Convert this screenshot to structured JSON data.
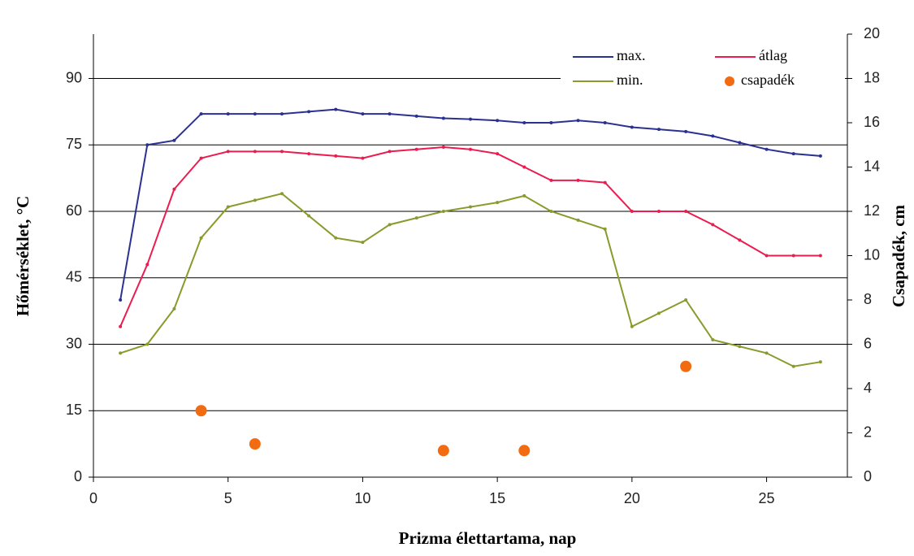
{
  "chart_data": {
    "type": "line",
    "x_label": "Prizma élettartama, nap",
    "y_label": "Hőmérséklet, °C",
    "y2_label": "Csapadék, cm",
    "x": [
      1,
      2,
      3,
      4,
      5,
      6,
      7,
      8,
      9,
      10,
      11,
      12,
      13,
      14,
      15,
      16,
      17,
      18,
      19,
      20,
      21,
      22,
      23,
      24,
      25,
      26,
      27
    ],
    "xlim": [
      0,
      28
    ],
    "xticks": [
      0,
      5,
      10,
      15,
      20,
      25
    ],
    "ylim": [
      0,
      100
    ],
    "yticks": [
      0,
      15,
      30,
      45,
      60,
      75,
      90
    ],
    "y2lim": [
      0,
      20
    ],
    "y2ticks": [
      0,
      2,
      4,
      6,
      8,
      10,
      12,
      14,
      16,
      18,
      20
    ],
    "grid": true,
    "series": [
      {
        "name": "max.",
        "color": "#2b3190",
        "values": [
          40,
          75,
          76,
          82,
          82,
          82,
          82,
          82.5,
          83,
          82,
          82,
          81.5,
          81,
          80.8,
          80.5,
          80,
          80,
          80.5,
          80,
          79,
          78.5,
          78,
          77,
          75.5,
          74,
          73,
          72.5
        ]
      },
      {
        "name": "átlag",
        "color": "#ec1c4f",
        "values": [
          34,
          48,
          65,
          72,
          73.5,
          73.5,
          73.5,
          73,
          72.5,
          72,
          73.5,
          74,
          74.5,
          74,
          73,
          70,
          67,
          67,
          66.5,
          60,
          60,
          60,
          57,
          53.5,
          50,
          50,
          50
        ]
      },
      {
        "name": "min.",
        "color": "#8a9a2b",
        "values": [
          28,
          30,
          38,
          54,
          61,
          62.5,
          64,
          59,
          54,
          53,
          57,
          58.5,
          60,
          61,
          62,
          63.5,
          60,
          58,
          56,
          34,
          37,
          40,
          31,
          29.5,
          28,
          25,
          26
        ]
      },
      {
        "name": "csapadék",
        "color": "#f26b10",
        "type": "scatter",
        "axis": "y2",
        "x": [
          4,
          6,
          13,
          16,
          22
        ],
        "values": [
          3,
          1.5,
          1.2,
          1.2,
          5
        ]
      }
    ]
  }
}
